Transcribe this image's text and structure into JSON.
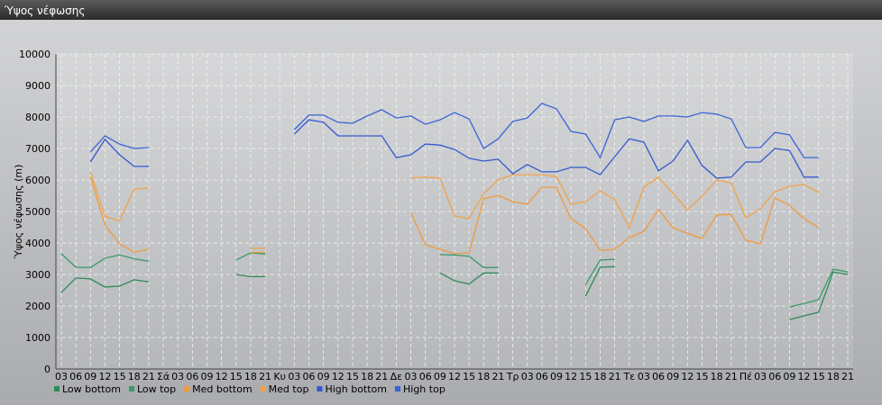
{
  "chart_data": {
    "type": "line",
    "title": "Ύψος νέφωσης",
    "y_label": "Ύψος νέφωσης (m)",
    "categories": [
      "03",
      "06",
      "09",
      "12",
      "15",
      "18",
      "21",
      "Σά",
      "03",
      "06",
      "09",
      "12",
      "15",
      "18",
      "21",
      "Κυ",
      "03",
      "06",
      "09",
      "12",
      "15",
      "18",
      "21",
      "Δε",
      "03",
      "06",
      "09",
      "12",
      "15",
      "18",
      "21",
      "Τρ",
      "03",
      "06",
      "09",
      "12",
      "15",
      "18",
      "21",
      "Τε",
      "03",
      "06",
      "09",
      "12",
      "15",
      "18",
      "21",
      "Πέ",
      "03",
      "06",
      "09",
      "12",
      "15",
      "18",
      "21"
    ],
    "series": [
      {
        "name": "Low bottom",
        "color": "#2e8b57",
        "values": [
          2430,
          2890,
          2860,
          2600,
          2630,
          2830,
          2770,
          null,
          null,
          null,
          null,
          null,
          3000,
          2930,
          2930,
          null,
          null,
          null,
          null,
          null,
          null,
          null,
          null,
          null,
          null,
          null,
          3050,
          2800,
          2700,
          3050,
          3050,
          null,
          null,
          null,
          null,
          null,
          2310,
          3230,
          3250,
          null,
          null,
          null,
          null,
          null,
          null,
          null,
          null,
          null,
          null,
          null,
          1570,
          1690,
          1800,
          3080,
          3000
        ]
      },
      {
        "name": "Low top",
        "color": "#3a9a68",
        "values": [
          3660,
          3230,
          3220,
          3520,
          3620,
          3500,
          3420,
          null,
          null,
          null,
          null,
          null,
          3460,
          3690,
          3650,
          null,
          null,
          null,
          null,
          null,
          null,
          null,
          null,
          null,
          null,
          null,
          3630,
          3620,
          3580,
          3220,
          3220,
          null,
          null,
          null,
          null,
          null,
          2680,
          3460,
          3480,
          null,
          null,
          null,
          null,
          null,
          null,
          null,
          null,
          null,
          null,
          null,
          1970,
          2080,
          2200,
          3170,
          3080
        ]
      },
      {
        "name": "Med bottom",
        "color": "#ef9a3c",
        "values": [
          null,
          null,
          6090,
          4570,
          3970,
          3710,
          3800,
          null,
          null,
          null,
          null,
          null,
          null,
          3700,
          3700,
          null,
          null,
          null,
          null,
          null,
          null,
          null,
          null,
          null,
          4970,
          3940,
          3800,
          3660,
          3690,
          5400,
          5510,
          5310,
          5230,
          5770,
          5770,
          4770,
          4460,
          3770,
          3800,
          4170,
          4370,
          5060,
          4490,
          4310,
          4140,
          4890,
          4910,
          4090,
          3970,
          5430,
          5200,
          4770,
          4490,
          null,
          null
        ]
      },
      {
        "name": "Med top",
        "color": "#f2a24a",
        "values": [
          null,
          null,
          6260,
          4850,
          4710,
          5710,
          5740,
          null,
          null,
          null,
          null,
          null,
          null,
          3830,
          3830,
          null,
          null,
          null,
          null,
          null,
          null,
          null,
          null,
          null,
          6060,
          6090,
          6060,
          4860,
          4770,
          5570,
          6000,
          6170,
          6170,
          6170,
          6110,
          5230,
          5310,
          5660,
          5370,
          4490,
          5770,
          6090,
          5570,
          5060,
          5490,
          6000,
          5910,
          4800,
          5090,
          5630,
          5800,
          5860,
          5600,
          null,
          null
        ]
      },
      {
        "name": "High bottom",
        "color": "#3459cf",
        "values": [
          null,
          null,
          6570,
          7290,
          6800,
          6430,
          6430,
          null,
          null,
          null,
          null,
          null,
          null,
          null,
          null,
          null,
          7460,
          7910,
          7830,
          7400,
          7400,
          7400,
          7400,
          6710,
          6800,
          7140,
          7110,
          6970,
          6690,
          6600,
          6660,
          6200,
          6490,
          6260,
          6260,
          6400,
          6400,
          6170,
          6740,
          7310,
          7200,
          6290,
          6600,
          7260,
          6460,
          6060,
          6090,
          6570,
          6570,
          7000,
          6940,
          6090,
          6090,
          null,
          null
        ]
      },
      {
        "name": "High top",
        "color": "#3a64d8",
        "values": [
          null,
          null,
          6890,
          7400,
          7140,
          7000,
          7030,
          null,
          null,
          null,
          null,
          null,
          null,
          null,
          null,
          null,
          7600,
          8060,
          8060,
          7830,
          7800,
          8030,
          8230,
          7970,
          8030,
          7770,
          7910,
          8140,
          7940,
          7000,
          7310,
          7860,
          7970,
          8430,
          8260,
          7540,
          7460,
          6710,
          7910,
          8000,
          7860,
          8030,
          8030,
          8000,
          8140,
          8090,
          7940,
          7030,
          7030,
          7510,
          7430,
          6710,
          6710,
          null,
          null
        ]
      }
    ],
    "ylim": [
      0,
      10000
    ],
    "yticks": [
      0,
      1000,
      2000,
      3000,
      4000,
      5000,
      6000,
      7000,
      8000,
      9000,
      10000
    ],
    "grid": true
  }
}
